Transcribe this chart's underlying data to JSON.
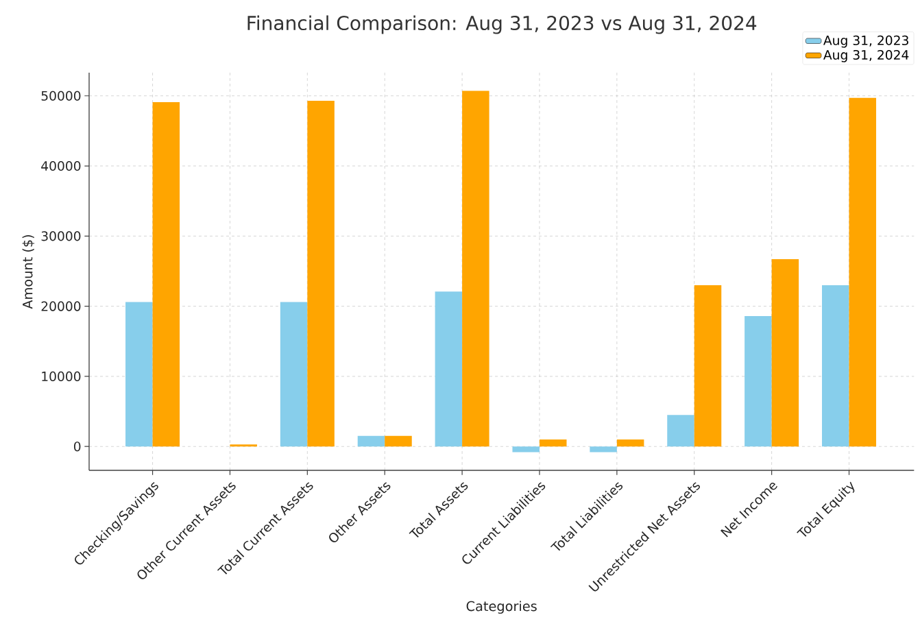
{
  "chart_data": {
    "type": "bar",
    "title": "Financial Comparison: Aug 31, 2023 vs Aug 31, 2024",
    "xlabel": "Categories",
    "ylabel": "Amount ($)",
    "categories": [
      "Checking/Savings",
      "Other Current Assets",
      "Total Current Assets",
      "Other Assets",
      "Total Assets",
      "Current Liabilities",
      "Total Liabilities",
      "Unrestricted Net Assets",
      "Net Income",
      "Total Equity"
    ],
    "series": [
      {
        "name": "Aug 31, 2023",
        "color": "#87ceeb",
        "values": [
          20600,
          0,
          20600,
          1500,
          22100,
          -800,
          -800,
          4500,
          18600,
          23000
        ]
      },
      {
        "name": "Aug 31, 2024",
        "color": "#ffa500",
        "values": [
          49100,
          300,
          49300,
          1500,
          50700,
          1000,
          1000,
          23000,
          26700,
          49700
        ]
      }
    ],
    "ylim": [
      -3400,
      53300
    ],
    "yticks": [
      0,
      10000,
      20000,
      30000,
      40000,
      50000
    ],
    "grid": true,
    "legend": "top right"
  }
}
